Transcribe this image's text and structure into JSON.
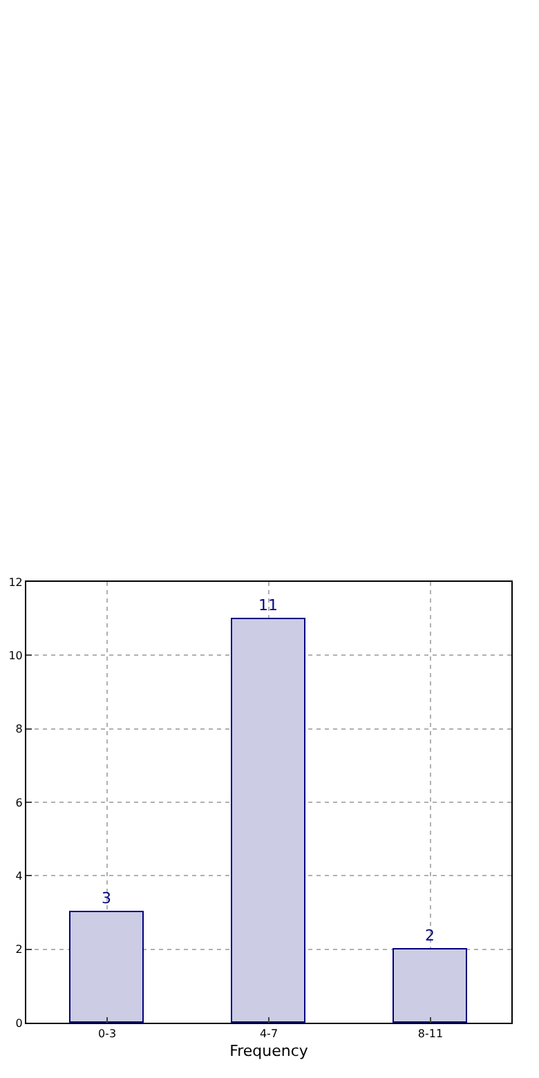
{
  "chart_data": {
    "type": "bar",
    "xlabel": "Frequency",
    "categories": [
      "0-3",
      "4-7",
      "8-11"
    ],
    "values": [
      3,
      11,
      2
    ],
    "color": "#ccccE5",
    "ylim": [
      0,
      12
    ],
    "yticks": [
      0,
      2,
      4,
      6,
      8,
      10,
      12
    ],
    "grid": true,
    "data_labels": true
  }
}
